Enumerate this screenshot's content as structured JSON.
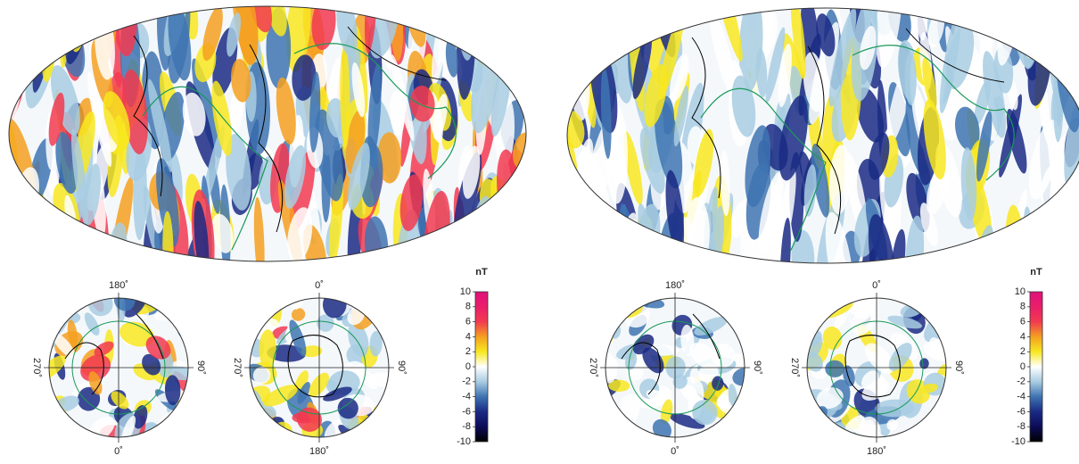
{
  "panels": [
    {
      "polar_maps": [
        {
          "top": "180˚",
          "bottom": "0˚",
          "left": "270˚",
          "right": "90˚"
        },
        {
          "top": "0˚",
          "bottom": "180˚",
          "left": "270˚",
          "right": "90˚"
        }
      ],
      "colorbar": {
        "unit": "nT",
        "ticks": [
          10,
          8,
          6,
          4,
          2,
          0,
          -2,
          -4,
          -6,
          -8,
          -10
        ],
        "colors": [
          "#e0107a",
          "#ea1e6a",
          "#f23a50",
          "#f4a020",
          "#f8e820",
          "#ffffff",
          "#a8cce2",
          "#3e74b2",
          "#1a2a84",
          "#0c0c58",
          "#000000"
        ]
      }
    },
    {
      "polar_maps": [
        {
          "top": "180˚",
          "bottom": "0˚",
          "left": "270˚",
          "right": "90˚"
        },
        {
          "top": "0˚",
          "bottom": "180˚",
          "left": "270˚",
          "right": "90˚"
        }
      ],
      "colorbar": {
        "unit": "nT",
        "ticks": [
          10,
          8,
          6,
          4,
          2,
          0,
          -2,
          -4,
          -6,
          -8,
          -10
        ],
        "colors": [
          "#e0107a",
          "#ea1e6a",
          "#f23a50",
          "#f4a020",
          "#f8e820",
          "#ffffff",
          "#a8cce2",
          "#3e74b2",
          "#1a2a84",
          "#0c0c58",
          "#000000"
        ]
      }
    }
  ]
}
